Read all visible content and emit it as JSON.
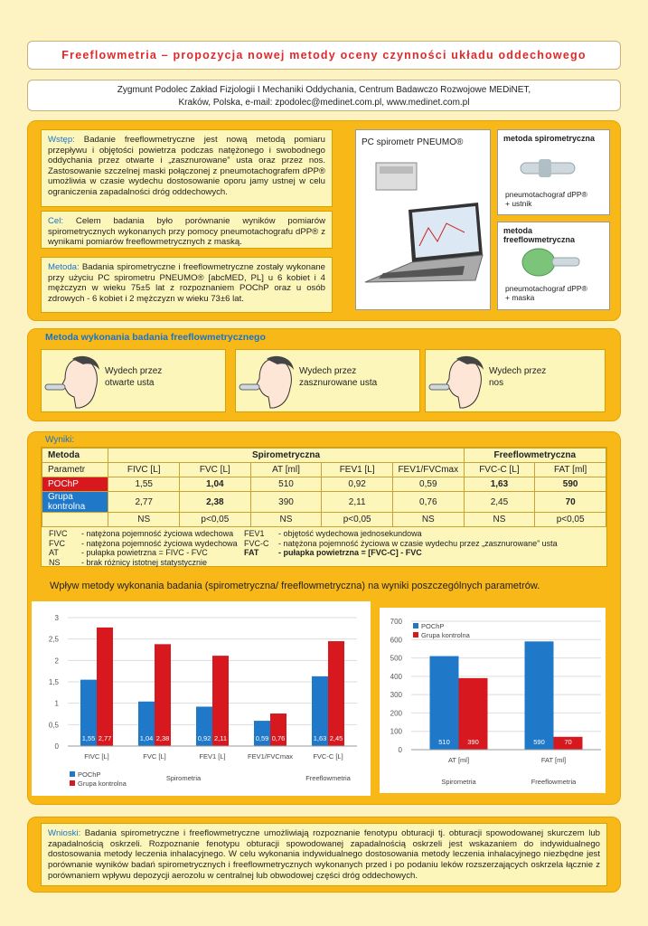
{
  "header": {
    "title": "Freeflowmetria – propozycja nowej metody oceny czynności układu oddechowego",
    "authors": [
      "Zygmunt Podolec Zakład Fizjologii I Mechaniki Oddychania, Centrum Badawczo Rozwojowe MEDiNET,",
      "Kraków, Polska, e-mail: zpodolec@medinet.com.pl, www.medinet.com.pl"
    ]
  },
  "intro": {
    "paragraphs": [
      {
        "label": "Wstęp:",
        "text": "Badanie freeflowmetryczne jest nową metodą pomiaru przepływu i objętości powietrza podczas natężonego i swobodnego oddychania przez otwarte i „zasznurowane” usta oraz przez nos. Zastosowanie szczelnej maski połączonej z pneumotachografem dPP® umożliwia w czasie wydechu dostosowanie oporu jamy ustnej w celu ograniczenia zapadalności dróg oddechowych."
      },
      {
        "label": "Cel:",
        "text": "Celem badania było porównanie wyników pomiarów spirometrycznych wykonanych przy pomocy pneumotachografu dPP® z wynikami pomiarów freeflowmetrycznych z maską."
      },
      {
        "label": "Metoda:",
        "text": "Badania spirometryczne i freeflowmetryczne zostały wykonane przy użyciu PC spirometru PNEUMO® [abcMED, PL] u 6 kobiet i 4 mężczyzn w wieku 75±5 lat z rozpoznaniem POChP oraz u osób zdrowych - 6 kobiet i 2 mężczyzn w wieku 73±6 lat."
      }
    ],
    "device": "PC spirometr PNEUMO®",
    "methods": [
      {
        "title": "metoda spirometryczna",
        "caption": [
          "pneumotachograf dPP®",
          "+ ustnik"
        ]
      },
      {
        "title": "metoda freeflowmetryczna",
        "caption": [
          "pneumotachograf dPP®",
          "+ maska"
        ]
      }
    ]
  },
  "procedure": {
    "title": "Metoda wykonania badania freeflowmetrycznego",
    "steps": [
      [
        "Wydech przez",
        "otwarte usta"
      ],
      [
        "Wydech przez",
        "zasznurowane usta"
      ],
      [
        "Wydech przez",
        "nos"
      ]
    ]
  },
  "results": {
    "label": "Wyniki:",
    "table": {
      "header": [
        "Metoda",
        "Spirometryczna",
        "Freeflowmetryczna"
      ],
      "rows": [
        [
          "Parametr",
          "FIVC [L]",
          "FVC [L]",
          "AT [ml]",
          "FEV1 [L]",
          "FEV1/FVCmax",
          "FVC-C [L]",
          "FAT [ml]"
        ],
        [
          "POChP",
          "1,55",
          "1,04",
          "510",
          "0,92",
          "0,59",
          "1,63",
          "590"
        ],
        [
          "Grupa kontrolna",
          "2,77",
          "2,38",
          "390",
          "2,11",
          "0,76",
          "2,45",
          "70"
        ]
      ],
      "significance": [
        "NS",
        "p<0,05",
        "NS",
        "p<0,05",
        "NS",
        "NS",
        "p<0,05"
      ]
    },
    "notes": [
      [
        "FIVC",
        "- natężona pojemność życiowa wdechowa"
      ],
      [
        "FEV1",
        "- objętość wydechowa jednosekundowa"
      ],
      [
        "FVC",
        "- natężona pojemność życiowa wydechowa"
      ],
      [
        "FVC-C",
        "- natężona pojemność życiowa w czasie wydechu przez „zasznurowane” usta"
      ],
      [
        "AT",
        "- pułapka powietrzna = FIVC - FVC"
      ],
      [
        "FAT",
        "- pułapka powietrzna = [FVC-C] - FVC"
      ],
      [
        "NS",
        "- brak różnicy istotnej statystycznie"
      ]
    ],
    "chart_heading": "Wpływ metody wykonania badania (spirometryczna/ freeflowmetryczna) na wyniki poszczególnych parametrów."
  },
  "chart_data": [
    {
      "type": "bar",
      "categories": [
        "FIVC [L]",
        "FVC [L]",
        "FEV1 [L]",
        "FEV1/FVCmax",
        "FVC-C [L]"
      ],
      "group_labels": [
        "Spirometria",
        "Freeflowmetria"
      ],
      "series": [
        {
          "name": "POChP",
          "color": "#1f78c8",
          "values": [
            1.55,
            1.04,
            0.92,
            0.59,
            1.63
          ],
          "value_labels": [
            "1,55",
            "1,04",
            "0,92",
            "0,59",
            "1,63"
          ]
        },
        {
          "name": "Grupa kontrolna",
          "color": "#d7191f",
          "values": [
            2.77,
            2.38,
            2.11,
            0.76,
            2.45
          ],
          "value_labels": [
            "2,77",
            "2,38",
            "2,11",
            "0,76",
            "2,45"
          ]
        }
      ],
      "ylim": [
        0,
        3
      ],
      "yticks": [
        0,
        {
          "value": 0.5,
          "label": "0,5"
        },
        1,
        {
          "value": 1.5,
          "label": "1,5"
        },
        2,
        {
          "value": 2.5,
          "label": "2,5"
        },
        3
      ],
      "grid": true,
      "legend": "bottom-left"
    },
    {
      "type": "bar",
      "categories": [
        "AT [ml]",
        "FAT [ml]"
      ],
      "group_labels": [
        "Spirometria",
        "Freeflowmetria"
      ],
      "series": [
        {
          "name": "POChP",
          "color": "#1f78c8",
          "values": [
            510,
            590
          ]
        },
        {
          "name": "Grupa kontrolna",
          "color": "#d7191f",
          "values": [
            390,
            70
          ]
        }
      ],
      "ylim": [
        0,
        700
      ],
      "yticks": [
        0,
        100,
        200,
        300,
        400,
        500,
        600,
        700
      ],
      "grid": true,
      "legend": "top-left"
    }
  ],
  "conclusions": {
    "label": "Wnioski:",
    "text": "Badania spirometryczne i freeflowmetryczne umożliwiają rozpoznanie fenotypu obturacji tj. obturacji spowodowanej skurczem lub zapadalnością oskrzeli. Rozpoznanie fenotypu obturacji spowodowanej zapadalnością oskrzeli jest wskazaniem do indywidualnego dostosowania metody leczenia inhalacyjnego. W celu wykonania indywidualnego dostosowania metody leczenia inhalacyjnego niezbędne jest porównanie wyników badań spirometrycznych i freeflowmetrycznych wykonanych przed i po podaniu leków rozszerzających oskrzela łącznie z porównaniem wpływu depozycji aerozolu w centralnej lub obwodowej części dróg oddechowych."
  }
}
